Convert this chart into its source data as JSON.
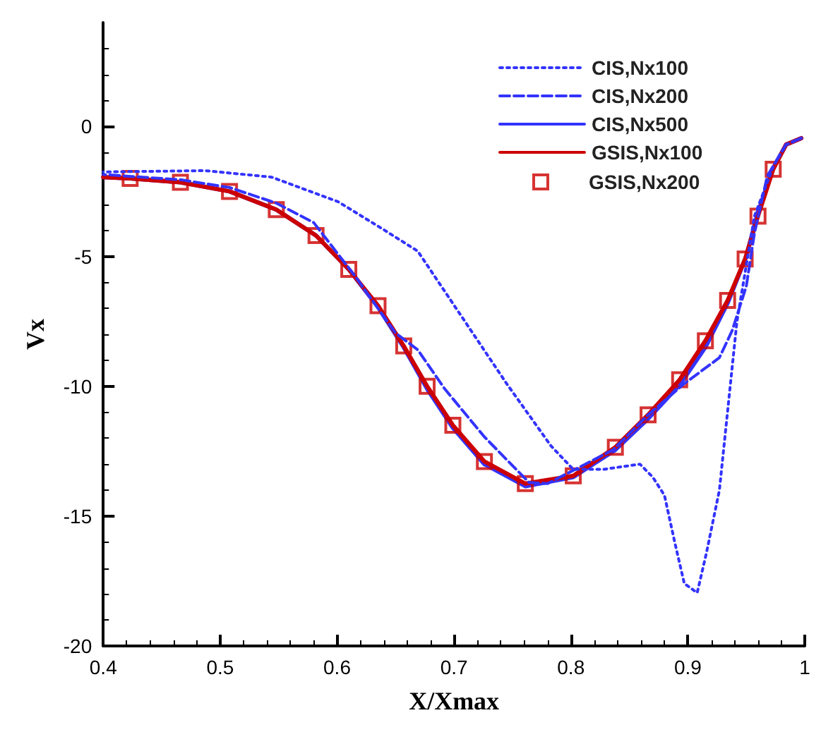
{
  "chart_data": {
    "type": "line",
    "xlabel": "X/Xmax",
    "ylabel": "Vx",
    "xlim": [
      0.4,
      1
    ],
    "ylim": [
      -20,
      4
    ],
    "xticks": [
      0.4,
      0.5,
      0.6,
      0.7,
      0.8,
      0.9,
      1
    ],
    "yticks": [
      -20,
      -15,
      -10,
      -5,
      0
    ],
    "grid": false,
    "legend": "top right",
    "series": [
      {
        "name": "CIS,Nx100",
        "color": "#3333ff",
        "line_style": "dotted",
        "x": [
          0.4,
          0.487,
          0.544,
          0.601,
          0.639,
          0.669,
          0.707,
          0.745,
          0.783,
          0.802,
          0.828,
          0.859,
          0.87,
          0.88,
          0.889,
          0.897,
          0.908,
          0.916,
          0.927,
          0.942,
          0.957,
          0.973,
          0.984,
          0.997
        ],
        "values": [
          -1.75,
          -1.7,
          -1.95,
          -2.9,
          -3.95,
          -4.8,
          -7.35,
          -9.9,
          -12.3,
          -13.2,
          -13.2,
          -13.0,
          -13.5,
          -14.2,
          -16.05,
          -17.6,
          -17.95,
          -16.4,
          -14.0,
          -7.5,
          -3.45,
          -1.55,
          -0.7,
          -0.45
        ]
      },
      {
        "name": "CIS,Nx200",
        "color": "#3333ff",
        "line_style": "dashed",
        "x": [
          0.4,
          0.466,
          0.508,
          0.548,
          0.58,
          0.616,
          0.65,
          0.669,
          0.692,
          0.726,
          0.764,
          0.78,
          0.836,
          0.866,
          0.897,
          0.927,
          0.938,
          0.95,
          0.957,
          0.968,
          0.984,
          0.997
        ],
        "values": [
          -1.85,
          -2.05,
          -2.35,
          -2.95,
          -3.7,
          -5.8,
          -7.95,
          -8.6,
          -10.1,
          -11.95,
          -13.7,
          -13.75,
          -12.45,
          -11.1,
          -9.9,
          -8.9,
          -7.85,
          -6.15,
          -4.1,
          -1.9,
          -0.7,
          -0.45
        ]
      },
      {
        "name": "CIS,Nx500",
        "color": "#3333ff",
        "line_style": "solid",
        "x": [
          0.4,
          0.423,
          0.466,
          0.508,
          0.548,
          0.582,
          0.61,
          0.635,
          0.657,
          0.677,
          0.699,
          0.726,
          0.761,
          0.802,
          0.838,
          0.866,
          0.893,
          0.915,
          0.934,
          0.95,
          0.96,
          0.973,
          0.984,
          0.997
        ],
        "values": [
          -1.95,
          -2.0,
          -2.15,
          -2.5,
          -3.2,
          -4.2,
          -5.5,
          -6.95,
          -8.5,
          -10.1,
          -11.6,
          -13.0,
          -13.85,
          -13.5,
          -12.45,
          -11.25,
          -9.95,
          -8.5,
          -6.8,
          -5.0,
          -3.3,
          -1.6,
          -0.7,
          -0.45
        ]
      },
      {
        "name": "GSIS,Nx100",
        "color": "#cc0000",
        "line_style": "solid",
        "x": [
          0.4,
          0.423,
          0.466,
          0.508,
          0.548,
          0.582,
          0.61,
          0.635,
          0.657,
          0.677,
          0.699,
          0.726,
          0.761,
          0.802,
          0.838,
          0.866,
          0.893,
          0.915,
          0.934,
          0.949,
          0.96,
          0.973,
          0.984,
          0.997
        ],
        "values": [
          -1.95,
          -2.0,
          -2.15,
          -2.5,
          -3.2,
          -4.2,
          -5.5,
          -6.9,
          -8.45,
          -10.0,
          -11.5,
          -12.9,
          -13.75,
          -13.45,
          -12.35,
          -11.1,
          -9.75,
          -8.25,
          -6.7,
          -5.1,
          -3.45,
          -1.65,
          -0.7,
          -0.45
        ]
      },
      {
        "name": "GSIS,Nx200",
        "color": "#cc0000",
        "type": "scatter",
        "marker": "square",
        "x": [
          0.423,
          0.466,
          0.508,
          0.548,
          0.582,
          0.61,
          0.635,
          0.657,
          0.677,
          0.699,
          0.726,
          0.761,
          0.802,
          0.838,
          0.866,
          0.893,
          0.915,
          0.934,
          0.949,
          0.96,
          0.973
        ],
        "values": [
          -2.0,
          -2.15,
          -2.5,
          -3.2,
          -4.2,
          -5.5,
          -6.9,
          -8.45,
          -10.0,
          -11.5,
          -12.9,
          -13.75,
          -13.45,
          -12.35,
          -11.1,
          -9.75,
          -8.25,
          -6.7,
          -5.1,
          -3.45,
          -1.65
        ]
      }
    ]
  }
}
